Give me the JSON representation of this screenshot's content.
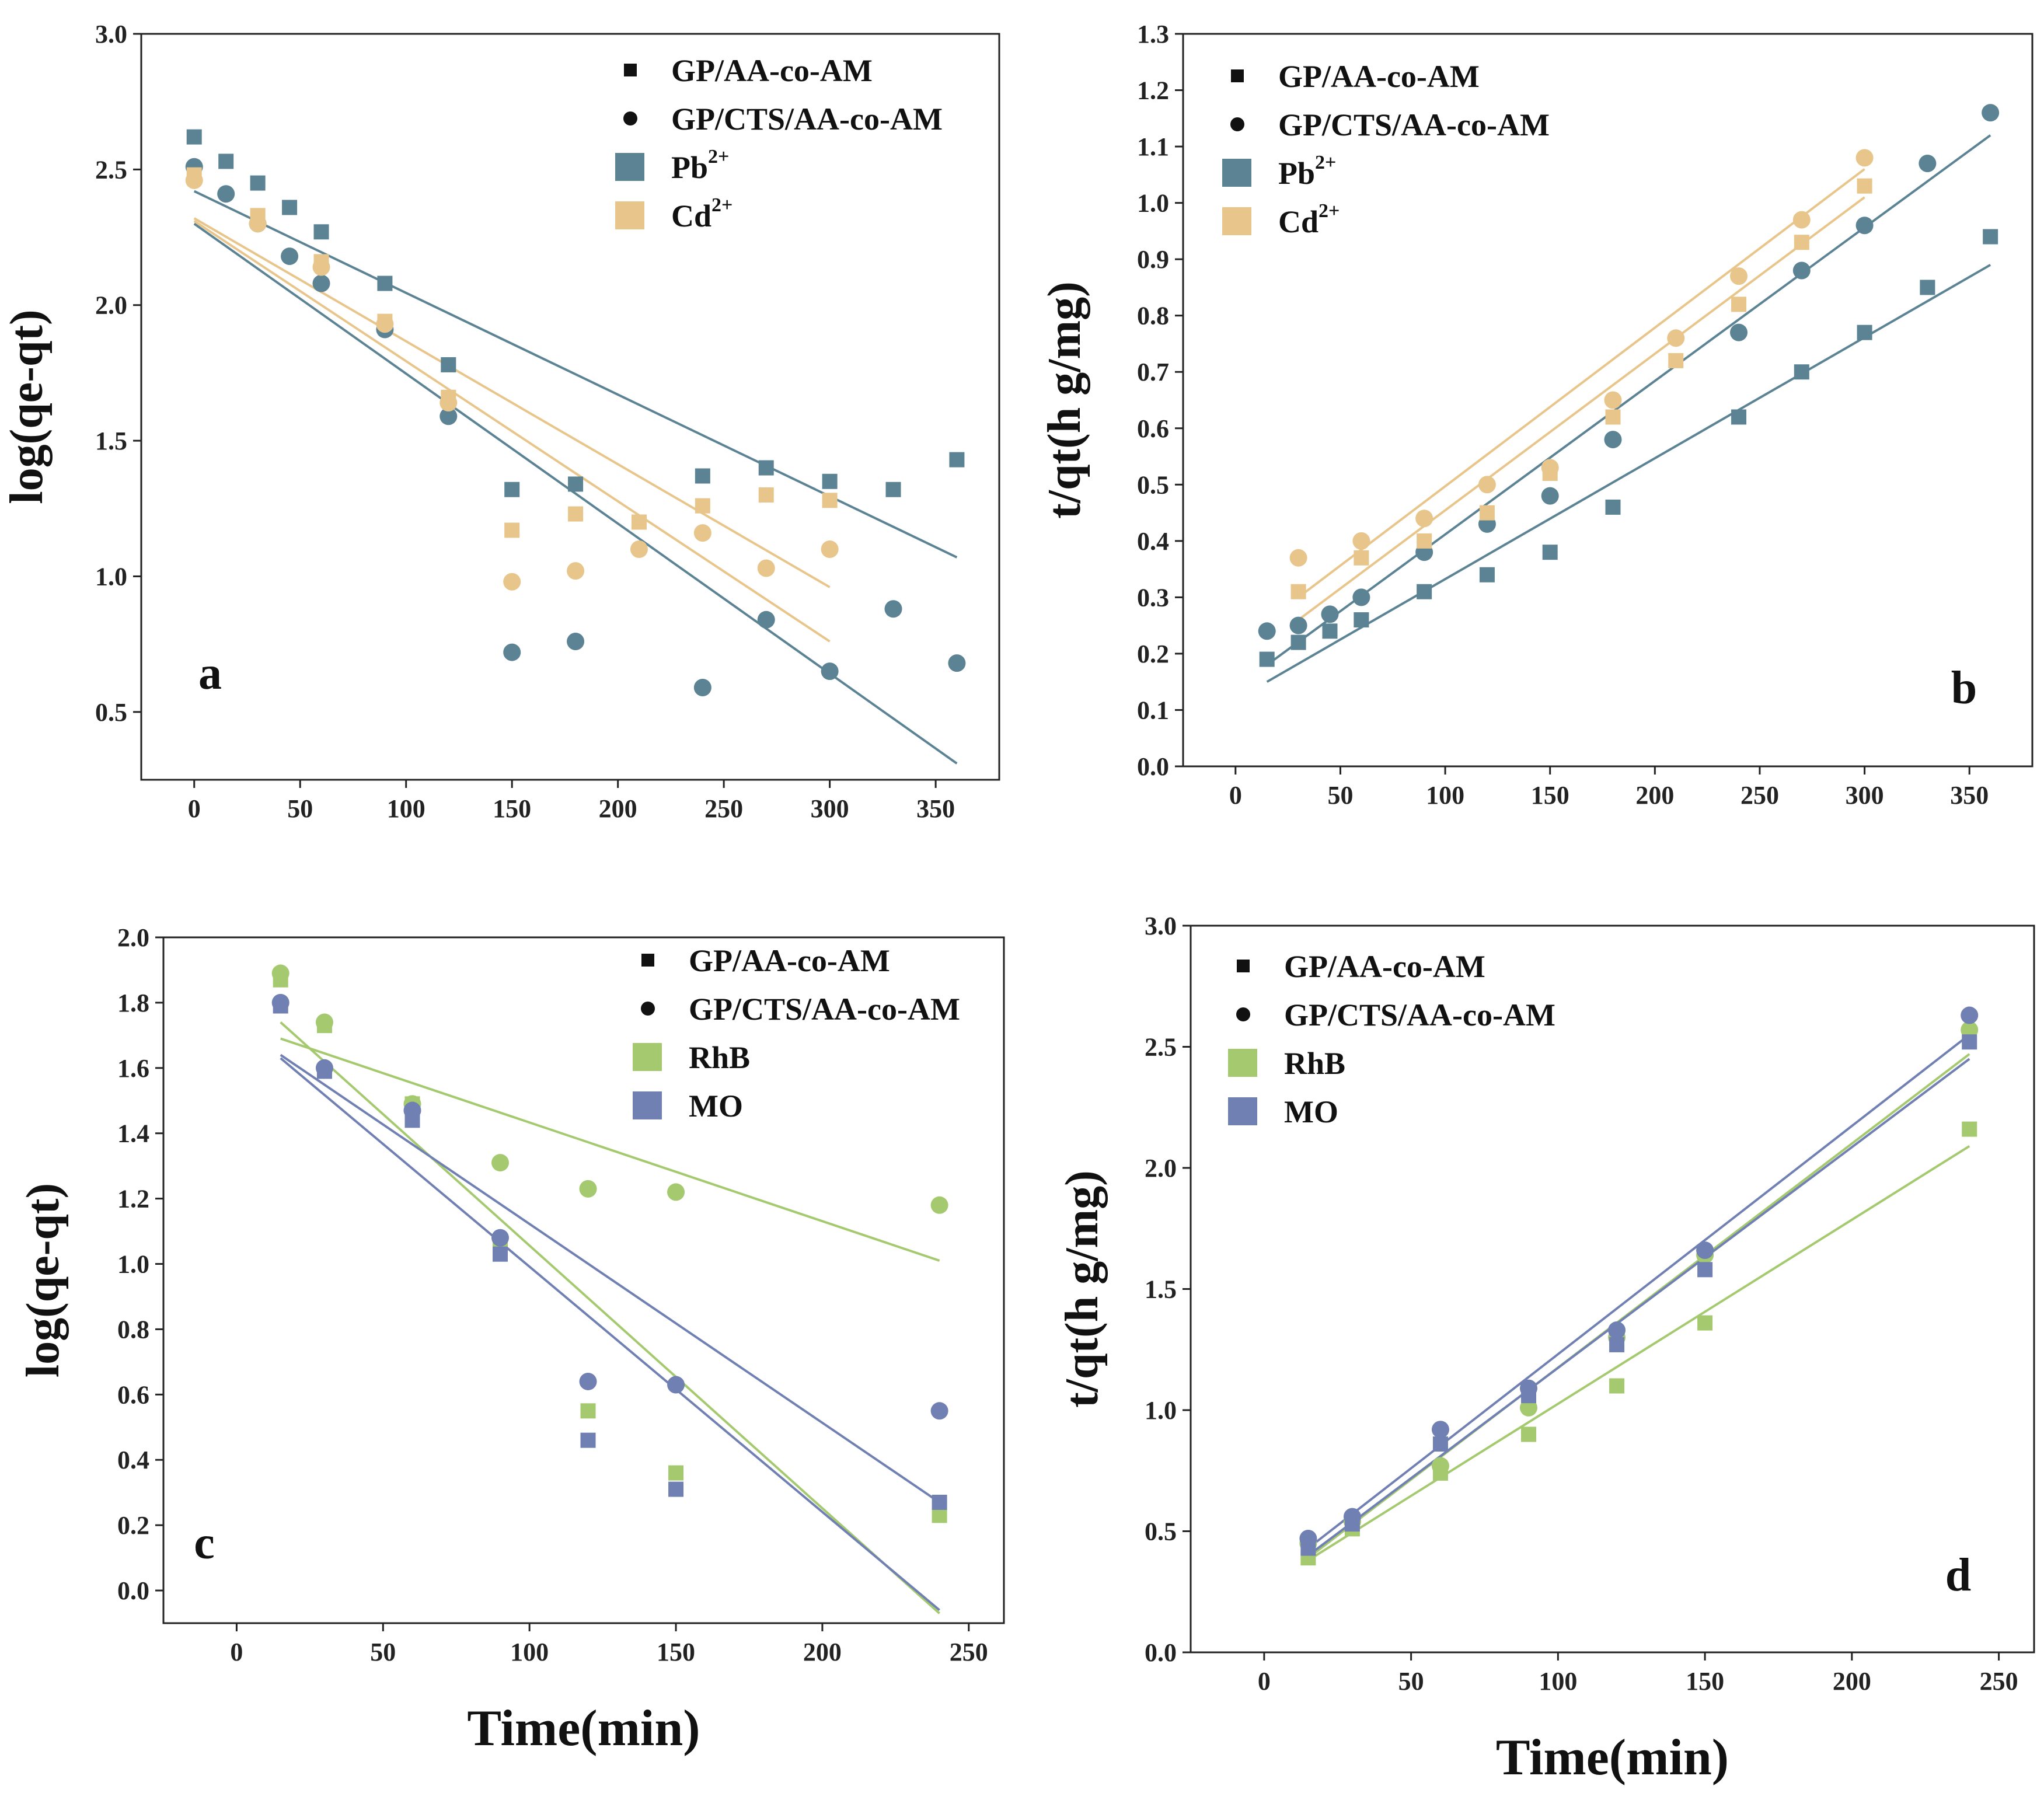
{
  "colors": {
    "pb": "#5b8394",
    "cd": "#e8c58a",
    "rhb": "#a4c96e",
    "mo": "#7180b3",
    "black": "#111111"
  },
  "chart_data": [
    {
      "id": "a",
      "type": "scatter",
      "panel_label": "a",
      "ylabel": "log(qe-qt)",
      "xlabel": "",
      "xlim": [
        -25,
        380
      ],
      "ylim": [
        0.25,
        3.0
      ],
      "xticks": [
        0,
        50,
        100,
        150,
        200,
        250,
        300,
        350
      ],
      "yticks": [
        0.5,
        1.0,
        1.5,
        2.0,
        2.5,
        3.0
      ],
      "ytick_labels": [
        "0.5",
        "1.0",
        "1.5",
        "2.0",
        "2.5",
        "3.0"
      ],
      "legend": {
        "placement": "top-right",
        "entries": [
          {
            "label": "GP/AA-co-AM",
            "marker": "square",
            "color": "black"
          },
          {
            "label": "GP/CTS/AA-co-AM",
            "marker": "circle",
            "color": "black"
          },
          {
            "label": "Pb",
            "sup": "2+",
            "marker": "patch",
            "color": "pb"
          },
          {
            "label": "Cd",
            "sup": "2+",
            "marker": "patch",
            "color": "cd"
          }
        ]
      },
      "series": [
        {
          "name": "Pb2+ GP/AA-co-AM",
          "marker": "square",
          "color": "pb",
          "x": [
            0,
            15,
            30,
            45,
            60,
            90,
            120,
            150,
            180,
            240,
            270,
            300,
            330,
            360
          ],
          "y": [
            2.62,
            2.53,
            2.45,
            2.36,
            2.27,
            2.08,
            1.78,
            1.32,
            1.34,
            1.37,
            1.4,
            1.35,
            1.32,
            1.43
          ],
          "fit": [
            [
              0,
              2.42
            ],
            [
              360,
              1.07
            ]
          ]
        },
        {
          "name": "Pb2+ GP/CTS/AA-co-AM",
          "marker": "circle",
          "color": "pb",
          "x": [
            0,
            15,
            30,
            45,
            60,
            90,
            120,
            150,
            180,
            240,
            270,
            300,
            330,
            360
          ],
          "y": [
            2.51,
            2.41,
            2.3,
            2.18,
            2.08,
            1.91,
            1.59,
            0.72,
            0.76,
            0.59,
            0.84,
            0.65,
            0.88,
            0.68
          ],
          "fit": [
            [
              0,
              2.3
            ],
            [
              360,
              0.31
            ]
          ]
        },
        {
          "name": "Cd2+ GP/AA-co-AM",
          "marker": "square",
          "color": "cd",
          "x": [
            0,
            30,
            60,
            90,
            120,
            150,
            180,
            210,
            240,
            270,
            300
          ],
          "y": [
            2.48,
            2.33,
            2.16,
            1.94,
            1.66,
            1.17,
            1.23,
            1.2,
            1.26,
            1.3,
            1.28
          ],
          "fit": [
            [
              0,
              2.32
            ],
            [
              300,
              0.96
            ]
          ]
        },
        {
          "name": "Cd2+ GP/CTS/AA-co-AM",
          "marker": "circle",
          "color": "cd",
          "x": [
            0,
            30,
            60,
            90,
            120,
            150,
            180,
            210,
            240,
            270,
            300
          ],
          "y": [
            2.46,
            2.3,
            2.14,
            1.93,
            1.64,
            0.98,
            1.02,
            1.1,
            1.16,
            1.03,
            1.1
          ],
          "fit": [
            [
              0,
              2.31
            ],
            [
              300,
              0.76
            ]
          ]
        }
      ]
    },
    {
      "id": "b",
      "type": "scatter",
      "panel_label": "b",
      "ylabel": "t/qt(h g/mg)",
      "xlabel": "",
      "xlim": [
        -25,
        380
      ],
      "ylim": [
        0.0,
        1.3
      ],
      "xticks": [
        0,
        50,
        100,
        150,
        200,
        250,
        300,
        350
      ],
      "yticks": [
        0.0,
        0.1,
        0.2,
        0.3,
        0.4,
        0.5,
        0.6,
        0.7,
        0.8,
        0.9,
        1.0,
        1.1,
        1.2,
        1.3
      ],
      "ytick_labels": [
        "0.0",
        "0.1",
        "0.2",
        "0.3",
        "0.4",
        "0.5",
        "0.6",
        "0.7",
        "0.8",
        "0.9",
        "1.0",
        "1.1",
        "1.2",
        "1.3"
      ],
      "legend": {
        "placement": "top-left",
        "entries": [
          {
            "label": "GP/AA-co-AM",
            "marker": "square",
            "color": "black"
          },
          {
            "label": "GP/CTS/AA-co-AM",
            "marker": "circle",
            "color": "black"
          },
          {
            "label": "Pb",
            "sup": "2+",
            "marker": "patch",
            "color": "pb"
          },
          {
            "label": "Cd",
            "sup": "2+",
            "marker": "patch",
            "color": "cd"
          }
        ]
      },
      "series": [
        {
          "name": "Pb2+ GP/AA-co-AM",
          "marker": "square",
          "color": "pb",
          "x": [
            15,
            30,
            45,
            60,
            90,
            120,
            150,
            180,
            240,
            270,
            300,
            330,
            360
          ],
          "y": [
            0.19,
            0.22,
            0.24,
            0.26,
            0.31,
            0.34,
            0.38,
            0.46,
            0.62,
            0.7,
            0.77,
            0.85,
            0.94
          ],
          "fit": [
            [
              15,
              0.15
            ],
            [
              360,
              0.89
            ]
          ]
        },
        {
          "name": "Pb2+ GP/CTS/AA-co-AM",
          "marker": "circle",
          "color": "pb",
          "x": [
            15,
            30,
            45,
            60,
            90,
            120,
            150,
            180,
            240,
            270,
            300,
            330,
            360
          ],
          "y": [
            0.24,
            0.25,
            0.27,
            0.3,
            0.38,
            0.43,
            0.48,
            0.58,
            0.77,
            0.88,
            0.96,
            1.07,
            1.16
          ],
          "fit": [
            [
              15,
              0.18
            ],
            [
              360,
              1.12
            ]
          ]
        },
        {
          "name": "Cd2+ GP/AA-co-AM",
          "marker": "square",
          "color": "cd",
          "x": [
            30,
            60,
            90,
            120,
            150,
            180,
            210,
            240,
            270,
            300
          ],
          "y": [
            0.31,
            0.37,
            0.4,
            0.45,
            0.52,
            0.62,
            0.72,
            0.82,
            0.93,
            1.03
          ],
          "fit": [
            [
              30,
              0.26
            ],
            [
              300,
              1.01
            ]
          ]
        },
        {
          "name": "Cd2+ GP/CTS/AA-co-AM",
          "marker": "circle",
          "color": "cd",
          "x": [
            30,
            60,
            90,
            120,
            150,
            180,
            210,
            240,
            270,
            300
          ],
          "y": [
            0.37,
            0.4,
            0.44,
            0.5,
            0.53,
            0.65,
            0.76,
            0.87,
            0.97,
            1.08
          ],
          "fit": [
            [
              30,
              0.3
            ],
            [
              300,
              1.06
            ]
          ]
        }
      ]
    },
    {
      "id": "c",
      "type": "scatter",
      "panel_label": "c",
      "ylabel": "log(qe-qt)",
      "xlabel": "Time(min)",
      "xlim": [
        -25,
        262
      ],
      "ylim": [
        -0.1,
        2.0
      ],
      "xticks": [
        0,
        50,
        100,
        150,
        200,
        250
      ],
      "yticks": [
        0.0,
        0.2,
        0.4,
        0.6,
        0.8,
        1.0,
        1.2,
        1.4,
        1.6,
        1.8,
        2.0
      ],
      "ytick_labels": [
        "0.0",
        "0.2",
        "0.4",
        "0.6",
        "0.8",
        "1.0",
        "1.2",
        "1.4",
        "1.6",
        "1.8",
        "2.0"
      ],
      "legend": {
        "placement": "top-right",
        "entries": [
          {
            "label": "GP/AA-co-AM",
            "marker": "square",
            "color": "black"
          },
          {
            "label": "GP/CTS/AA-co-AM",
            "marker": "circle",
            "color": "black"
          },
          {
            "label": "RhB",
            "sup": "",
            "marker": "patch",
            "color": "rhb"
          },
          {
            "label": "MO",
            "sup": "",
            "marker": "patch",
            "color": "mo"
          }
        ]
      },
      "series": [
        {
          "name": "RhB GP/AA-co-AM",
          "marker": "square",
          "color": "rhb",
          "x": [
            15,
            30,
            60,
            90,
            120,
            150,
            240
          ],
          "y": [
            1.87,
            1.73,
            1.49,
            1.06,
            0.55,
            0.36,
            0.23
          ],
          "fit": [
            [
              15,
              1.74
            ],
            [
              240,
              -0.07
            ]
          ]
        },
        {
          "name": "RhB GP/CTS/AA-co-AM",
          "marker": "circle",
          "color": "rhb",
          "x": [
            15,
            30,
            60,
            90,
            120,
            150,
            240
          ],
          "y": [
            1.89,
            1.74,
            1.49,
            1.31,
            1.23,
            1.22,
            1.18
          ],
          "fit": [
            [
              15,
              1.69
            ],
            [
              240,
              1.01
            ]
          ]
        },
        {
          "name": "MO GP/AA-co-AM",
          "marker": "square",
          "color": "mo",
          "x": [
            15,
            30,
            60,
            90,
            120,
            150,
            240
          ],
          "y": [
            1.79,
            1.59,
            1.44,
            1.03,
            0.46,
            0.31,
            0.27
          ],
          "fit": [
            [
              15,
              1.63
            ],
            [
              240,
              -0.06
            ]
          ]
        },
        {
          "name": "MO GP/CTS/AA-co-AM",
          "marker": "circle",
          "color": "mo",
          "x": [
            15,
            30,
            60,
            90,
            120,
            150,
            240
          ],
          "y": [
            1.8,
            1.6,
            1.47,
            1.08,
            0.64,
            0.63,
            0.55
          ],
          "fit": [
            [
              15,
              1.64
            ],
            [
              240,
              0.27
            ]
          ]
        }
      ]
    },
    {
      "id": "d",
      "type": "scatter",
      "panel_label": "d",
      "ylabel": "t/qt(h g/mg)",
      "xlabel": "Time(min)",
      "xlim": [
        -25,
        262
      ],
      "ylim": [
        0.0,
        3.0
      ],
      "xticks": [
        0,
        50,
        100,
        150,
        200,
        250
      ],
      "yticks": [
        0.0,
        0.5,
        1.0,
        1.5,
        2.0,
        2.5,
        3.0
      ],
      "ytick_labels": [
        "0.0",
        "0.5",
        "1.0",
        "1.5",
        "2.0",
        "2.5",
        "3.0"
      ],
      "legend": {
        "placement": "top-left",
        "entries": [
          {
            "label": "GP/AA-co-AM",
            "marker": "square",
            "color": "black"
          },
          {
            "label": "GP/CTS/AA-co-AM",
            "marker": "circle",
            "color": "black"
          },
          {
            "label": "RhB",
            "sup": "",
            "marker": "patch",
            "color": "rhb"
          },
          {
            "label": "MO",
            "sup": "",
            "marker": "patch",
            "color": "mo"
          }
        ]
      },
      "series": [
        {
          "name": "RhB GP/AA-co-AM",
          "marker": "square",
          "color": "rhb",
          "x": [
            15,
            30,
            60,
            90,
            120,
            150,
            240
          ],
          "y": [
            0.39,
            0.51,
            0.74,
            0.9,
            1.1,
            1.36,
            2.16
          ],
          "fit": [
            [
              15,
              0.38
            ],
            [
              240,
              2.09
            ]
          ]
        },
        {
          "name": "RhB GP/CTS/AA-co-AM",
          "marker": "circle",
          "color": "rhb",
          "x": [
            15,
            30,
            60,
            90,
            120,
            150,
            240
          ],
          "y": [
            0.45,
            0.54,
            0.77,
            1.01,
            1.3,
            1.64,
            2.57
          ],
          "fit": [
            [
              15,
              0.39
            ],
            [
              240,
              2.47
            ]
          ]
        },
        {
          "name": "MO GP/AA-co-AM",
          "marker": "square",
          "color": "mo",
          "x": [
            15,
            30,
            60,
            90,
            120,
            150,
            240
          ],
          "y": [
            0.43,
            0.53,
            0.86,
            1.06,
            1.27,
            1.58,
            2.52
          ],
          "fit": [
            [
              15,
              0.4
            ],
            [
              240,
              2.45
            ]
          ]
        },
        {
          "name": "MO GP/CTS/AA-co-AM",
          "marker": "circle",
          "color": "mo",
          "x": [
            15,
            30,
            60,
            90,
            120,
            150,
            240
          ],
          "y": [
            0.47,
            0.56,
            0.92,
            1.09,
            1.33,
            1.66,
            2.63
          ],
          "fit": [
            [
              15,
              0.43
            ],
            [
              240,
              2.55
            ]
          ]
        }
      ]
    }
  ]
}
